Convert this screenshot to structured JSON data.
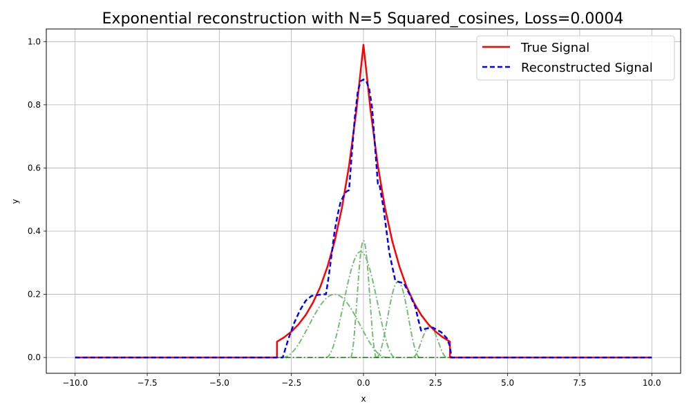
{
  "chart_data": {
    "type": "line",
    "title": "Exponential reconstruction with N=5 Squared_cosines, Loss=0.0004",
    "xlabel": "x",
    "ylabel": "y",
    "xlim": [
      -11.0,
      11.0
    ],
    "ylim": [
      -0.05,
      1.04
    ],
    "xticks": [
      -10.0,
      -7.5,
      -5.0,
      -2.5,
      0.0,
      2.5,
      5.0,
      7.5,
      10.0
    ],
    "xtick_labels": [
      "−10.0",
      "−7.5",
      "−5.0",
      "−2.5",
      "0.0",
      "2.5",
      "5.0",
      "7.5",
      "10.0"
    ],
    "yticks": [
      0.0,
      0.2,
      0.4,
      0.6,
      0.8,
      1.0
    ],
    "ytick_labels": [
      "0.0",
      "0.2",
      "0.4",
      "0.6",
      "0.8",
      "1.0"
    ],
    "grid": true,
    "legend_position": "top-right",
    "series": [
      {
        "name": "True Signal",
        "color": "#ff0000",
        "style": "solid",
        "x": [
          -10.0,
          -3.0,
          -3.0,
          -2.75,
          -2.5,
          -2.25,
          -2.0,
          -1.75,
          -1.5,
          -1.25,
          -1.0,
          -0.75,
          -0.5,
          -0.25,
          0.0,
          0.25,
          0.5,
          0.75,
          1.0,
          1.25,
          1.5,
          1.75,
          2.0,
          2.25,
          2.5,
          2.75,
          3.0,
          3.0,
          10.0
        ],
        "values": [
          0.0,
          0.0,
          0.05,
          0.064,
          0.082,
          0.105,
          0.135,
          0.174,
          0.223,
          0.287,
          0.368,
          0.472,
          0.607,
          0.779,
          0.99,
          0.779,
          0.607,
          0.472,
          0.368,
          0.287,
          0.223,
          0.174,
          0.135,
          0.105,
          0.082,
          0.064,
          0.05,
          0.0,
          0.0
        ]
      },
      {
        "name": "Reconstructed Signal",
        "color": "#0000ff",
        "style": "dashed",
        "x": [
          -10.0,
          -2.8,
          -2.6,
          -2.4,
          -2.2,
          -2.0,
          -1.8,
          -1.6,
          -1.4,
          -1.3,
          -1.2,
          -1.1,
          -1.0,
          -0.9,
          -0.8,
          -0.7,
          -0.6,
          -0.5,
          -0.4,
          -0.3,
          -0.2,
          -0.1,
          0.0,
          0.1,
          0.2,
          0.3,
          0.4,
          0.5,
          0.55,
          0.7,
          0.9,
          1.1,
          1.2,
          1.4,
          1.6,
          1.8,
          1.9,
          2.0,
          2.1,
          2.4,
          2.7,
          2.9,
          3.0,
          3.05,
          10.0
        ],
        "values": [
          0.0,
          0.0,
          0.06,
          0.11,
          0.15,
          0.18,
          0.195,
          0.198,
          0.2,
          0.2,
          0.26,
          0.33,
          0.4,
          0.45,
          0.49,
          0.51,
          0.525,
          0.53,
          0.65,
          0.76,
          0.84,
          0.875,
          0.88,
          0.875,
          0.85,
          0.79,
          0.67,
          0.55,
          0.55,
          0.47,
          0.33,
          0.245,
          0.24,
          0.235,
          0.2,
          0.16,
          0.12,
          0.085,
          0.09,
          0.095,
          0.08,
          0.06,
          0.035,
          0.0,
          0.0
        ]
      }
    ],
    "components": [
      {
        "center": -1.0,
        "half_width": 1.8,
        "amplitude": 0.2
      },
      {
        "center": -0.1,
        "half_width": 1.2,
        "amplitude": 0.335
      },
      {
        "center": 0.0,
        "half_width": 0.45,
        "amplitude": 0.37
      },
      {
        "center": 1.2,
        "half_width": 0.75,
        "amplitude": 0.24
      },
      {
        "center": 2.3,
        "half_width": 0.6,
        "amplitude": 0.098
      }
    ],
    "component_color": "#77bb77",
    "baseline_color": "#008000"
  }
}
